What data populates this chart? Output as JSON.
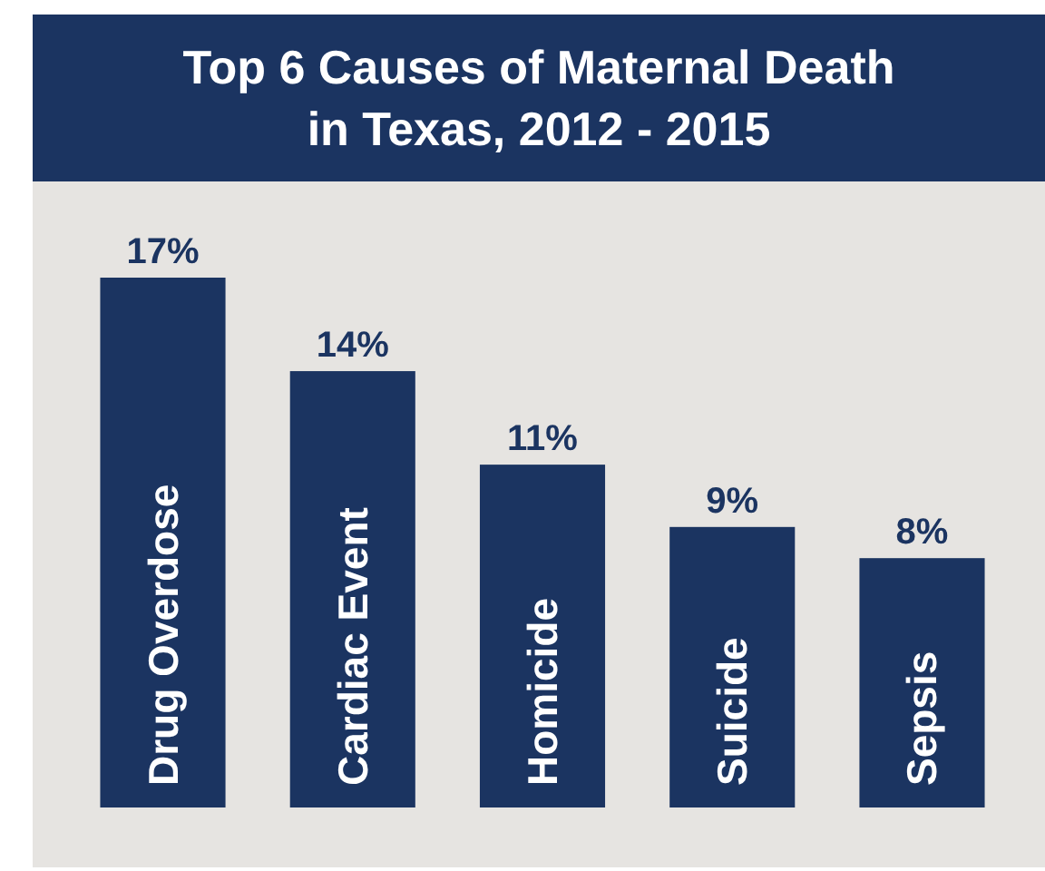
{
  "chart_data": {
    "type": "bar",
    "title": "Top 6 Causes of Maternal Death in Texas, 2012 - 2015",
    "categories": [
      "Drug Overdose",
      "Cardiac Event",
      "Homicide",
      "Suicide",
      "Sepsis"
    ],
    "values": [
      17,
      14,
      11,
      9,
      8
    ],
    "value_labels": [
      "17%",
      "14%",
      "11%",
      "9%",
      "8%"
    ],
    "color": "#1b3461"
  }
}
